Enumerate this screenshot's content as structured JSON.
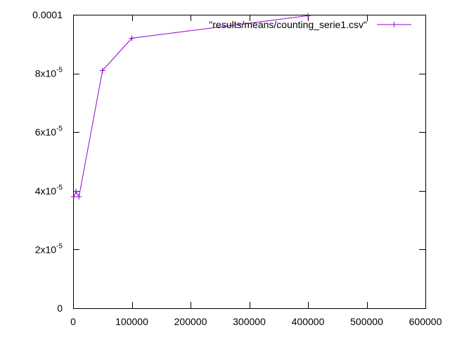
{
  "chart_data": {
    "type": "line",
    "title": "",
    "xlabel": "",
    "ylabel": "",
    "xlim": [
      0,
      600000
    ],
    "ylim": [
      0,
      0.0001
    ],
    "grid": false,
    "legend_position": "top-right",
    "x_ticks": [
      {
        "value": 0,
        "label": "0"
      },
      {
        "value": 100000,
        "label": "100000"
      },
      {
        "value": 200000,
        "label": "200000"
      },
      {
        "value": 300000,
        "label": "300000"
      },
      {
        "value": 400000,
        "label": "400000"
      },
      {
        "value": 500000,
        "label": "500000"
      },
      {
        "value": 600000,
        "label": "600000"
      }
    ],
    "y_ticks": [
      {
        "value": 0,
        "mantissa": "0",
        "exponent": ""
      },
      {
        "value": 2e-05,
        "mantissa": "2x10",
        "exponent": "-5"
      },
      {
        "value": 4e-05,
        "mantissa": "4x10",
        "exponent": "-5"
      },
      {
        "value": 6e-05,
        "mantissa": "6x10",
        "exponent": "-5"
      },
      {
        "value": 8e-05,
        "mantissa": "8x10",
        "exponent": "-5"
      },
      {
        "value": 0.0001,
        "mantissa": "0.0001",
        "exponent": ""
      }
    ],
    "series": [
      {
        "name": "\"results/means/counting_serie1.csv\"",
        "color": "#9400d3",
        "marker": "plus",
        "points": [
          {
            "x": 1000,
            "y": 3.8e-05
          },
          {
            "x": 5000,
            "y": 3.98e-05
          },
          {
            "x": 10000,
            "y": 3.8e-05
          },
          {
            "x": 50000,
            "y": 8.1e-05
          },
          {
            "x": 100000,
            "y": 9.2e-05
          },
          {
            "x": 400000,
            "y": 9.97e-05
          }
        ]
      }
    ]
  }
}
